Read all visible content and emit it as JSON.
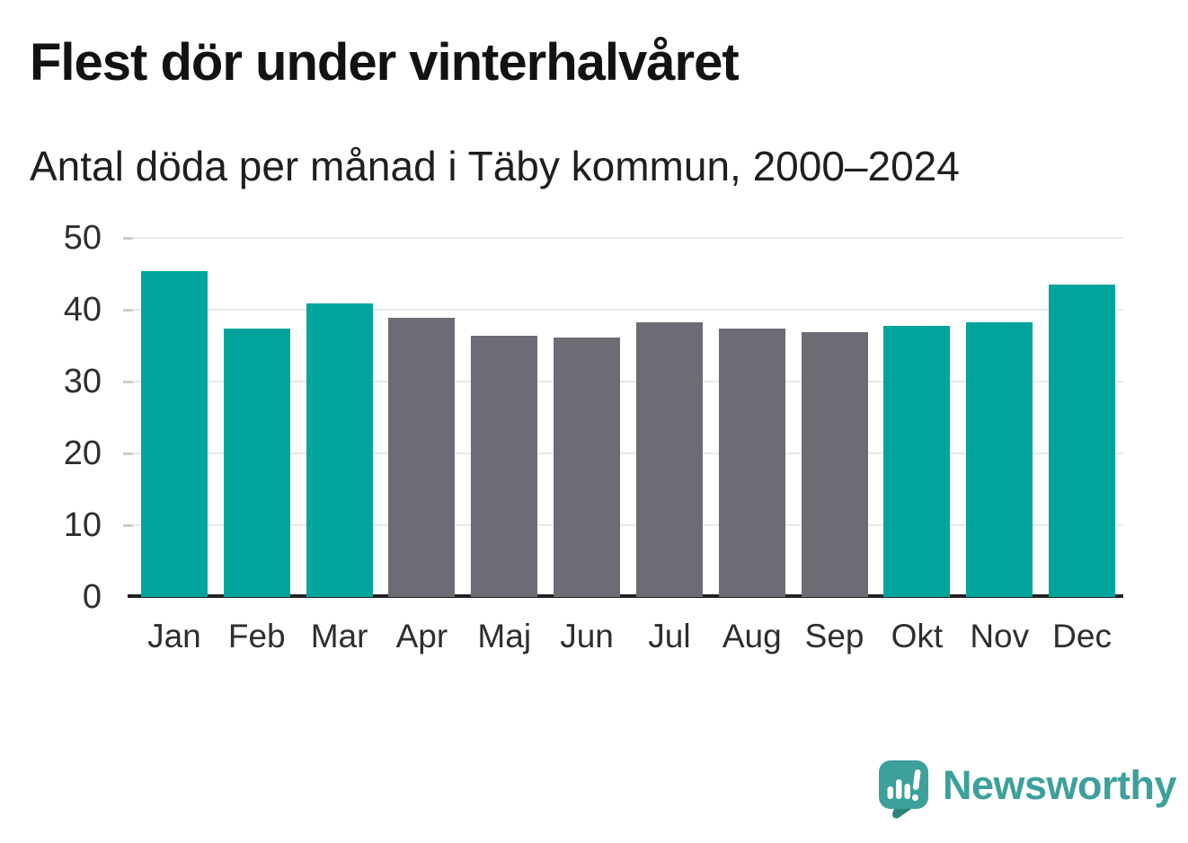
{
  "header": {
    "title": "Flest dör under vinterhalvåret",
    "subtitle": "Antal döda per månad i Täby kommun, 2000–2024"
  },
  "chart_data": {
    "type": "bar",
    "title": "Flest dör under vinterhalvåret",
    "subtitle": "Antal döda per månad i Täby kommun, 2000–2024",
    "categories": [
      "Jan",
      "Feb",
      "Mar",
      "Apr",
      "Maj",
      "Jun",
      "Jul",
      "Aug",
      "Sep",
      "Okt",
      "Nov",
      "Dec"
    ],
    "values": [
      45.4,
      37.4,
      40.9,
      38.9,
      36.4,
      36.1,
      38.2,
      37.4,
      36.9,
      37.8,
      38.3,
      43.5
    ],
    "colors": [
      "#00a49b",
      "#00a49b",
      "#00a49b",
      "#6e6b74",
      "#6e6b74",
      "#6e6b74",
      "#6e6b74",
      "#6e6b74",
      "#6e6b74",
      "#00a49b",
      "#00a49b",
      "#00a49b"
    ],
    "highlight_color": "#00a49b",
    "muted_color": "#6e6b74",
    "xlabel": "",
    "ylabel": "",
    "ylim": [
      0,
      50
    ],
    "yticks": [
      0,
      10,
      20,
      30,
      40,
      50
    ],
    "grid": true,
    "legend": "none"
  },
  "footer": {
    "brand": "Newsworthy",
    "brand_color": "#3da09a",
    "logo_icon": "newsworthy-chart-bubble-icon"
  }
}
